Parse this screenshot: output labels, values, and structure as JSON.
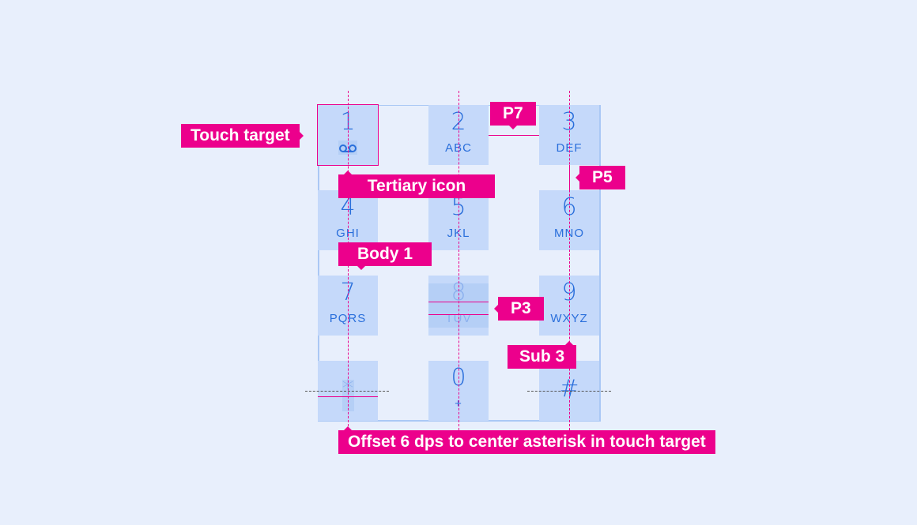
{
  "keys": [
    {
      "digit": "1",
      "letters": ""
    },
    {
      "digit": "2",
      "letters": "ABC"
    },
    {
      "digit": "3",
      "letters": "DEF"
    },
    {
      "digit": "4",
      "letters": "GHI"
    },
    {
      "digit": "5",
      "letters": "JKL"
    },
    {
      "digit": "6",
      "letters": "MNO"
    },
    {
      "digit": "7",
      "letters": "PQRS"
    },
    {
      "digit": "8",
      "letters": "TUV"
    },
    {
      "digit": "9",
      "letters": "WXYZ"
    },
    {
      "digit": "*",
      "letters": ""
    },
    {
      "digit": "0",
      "letters": "+"
    },
    {
      "digit": "#",
      "letters": ""
    }
  ],
  "annotations": {
    "touch_target": "Touch target",
    "p7": "P7",
    "p5": "P5",
    "tertiary_icon": "Tertiary icon",
    "body1": "Body 1",
    "p3": "P3",
    "sub3": "Sub 3",
    "offset": "Offset 6 dps to center asterisk in touch target"
  },
  "colors": {
    "background": "#e8effc",
    "key": "#c5d9fa",
    "text": "#2a6fdb",
    "annotation": "#ec008c"
  }
}
